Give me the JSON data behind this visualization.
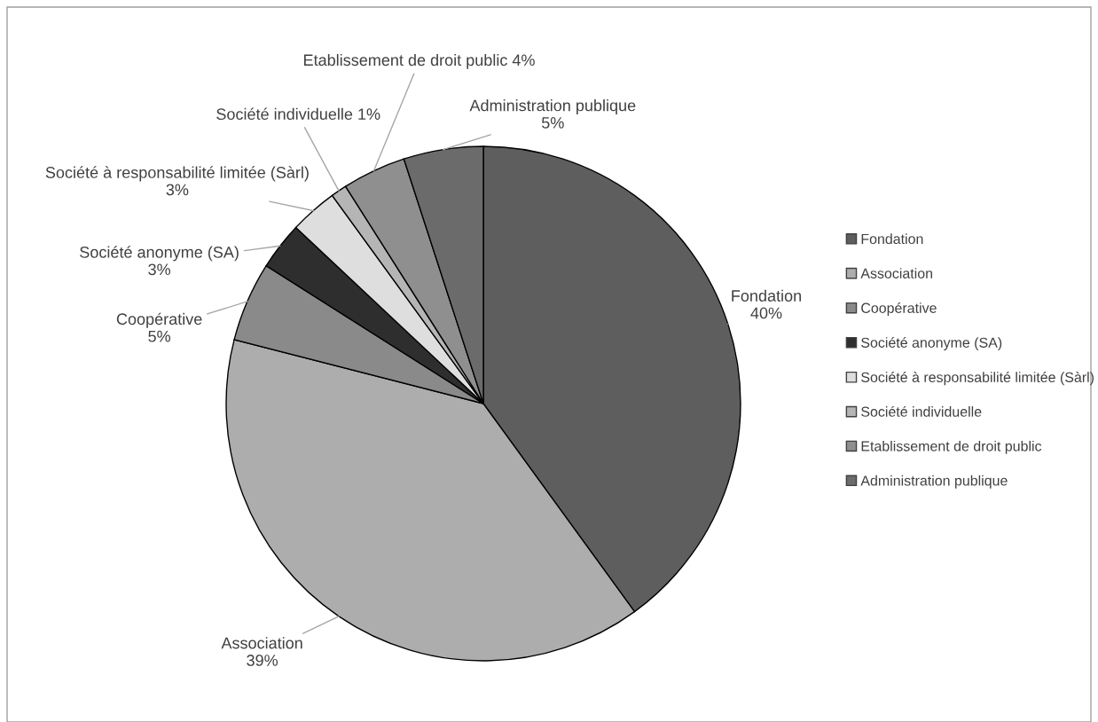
{
  "chart_data": {
    "type": "pie",
    "categories": [
      "Fondation",
      "Association",
      "Coopérative",
      "Société anonyme (SA)",
      "Société à responsabilité limitée (Sàrl)",
      "Société individuelle",
      "Etablissement de droit public",
      "Administration publique"
    ],
    "values": [
      40,
      39,
      5,
      3,
      3,
      1,
      4,
      5
    ],
    "value_labels": [
      "40%",
      "39%",
      "5%",
      "3%",
      "3%",
      "1%",
      "4%",
      "5%"
    ],
    "colors": [
      "#5e5e5e",
      "#adadad",
      "#8a8a8a",
      "#2e2e2e",
      "#dedede",
      "#b5b5b5",
      "#8f8f8f",
      "#6b6b6b"
    ],
    "legend": "right"
  }
}
